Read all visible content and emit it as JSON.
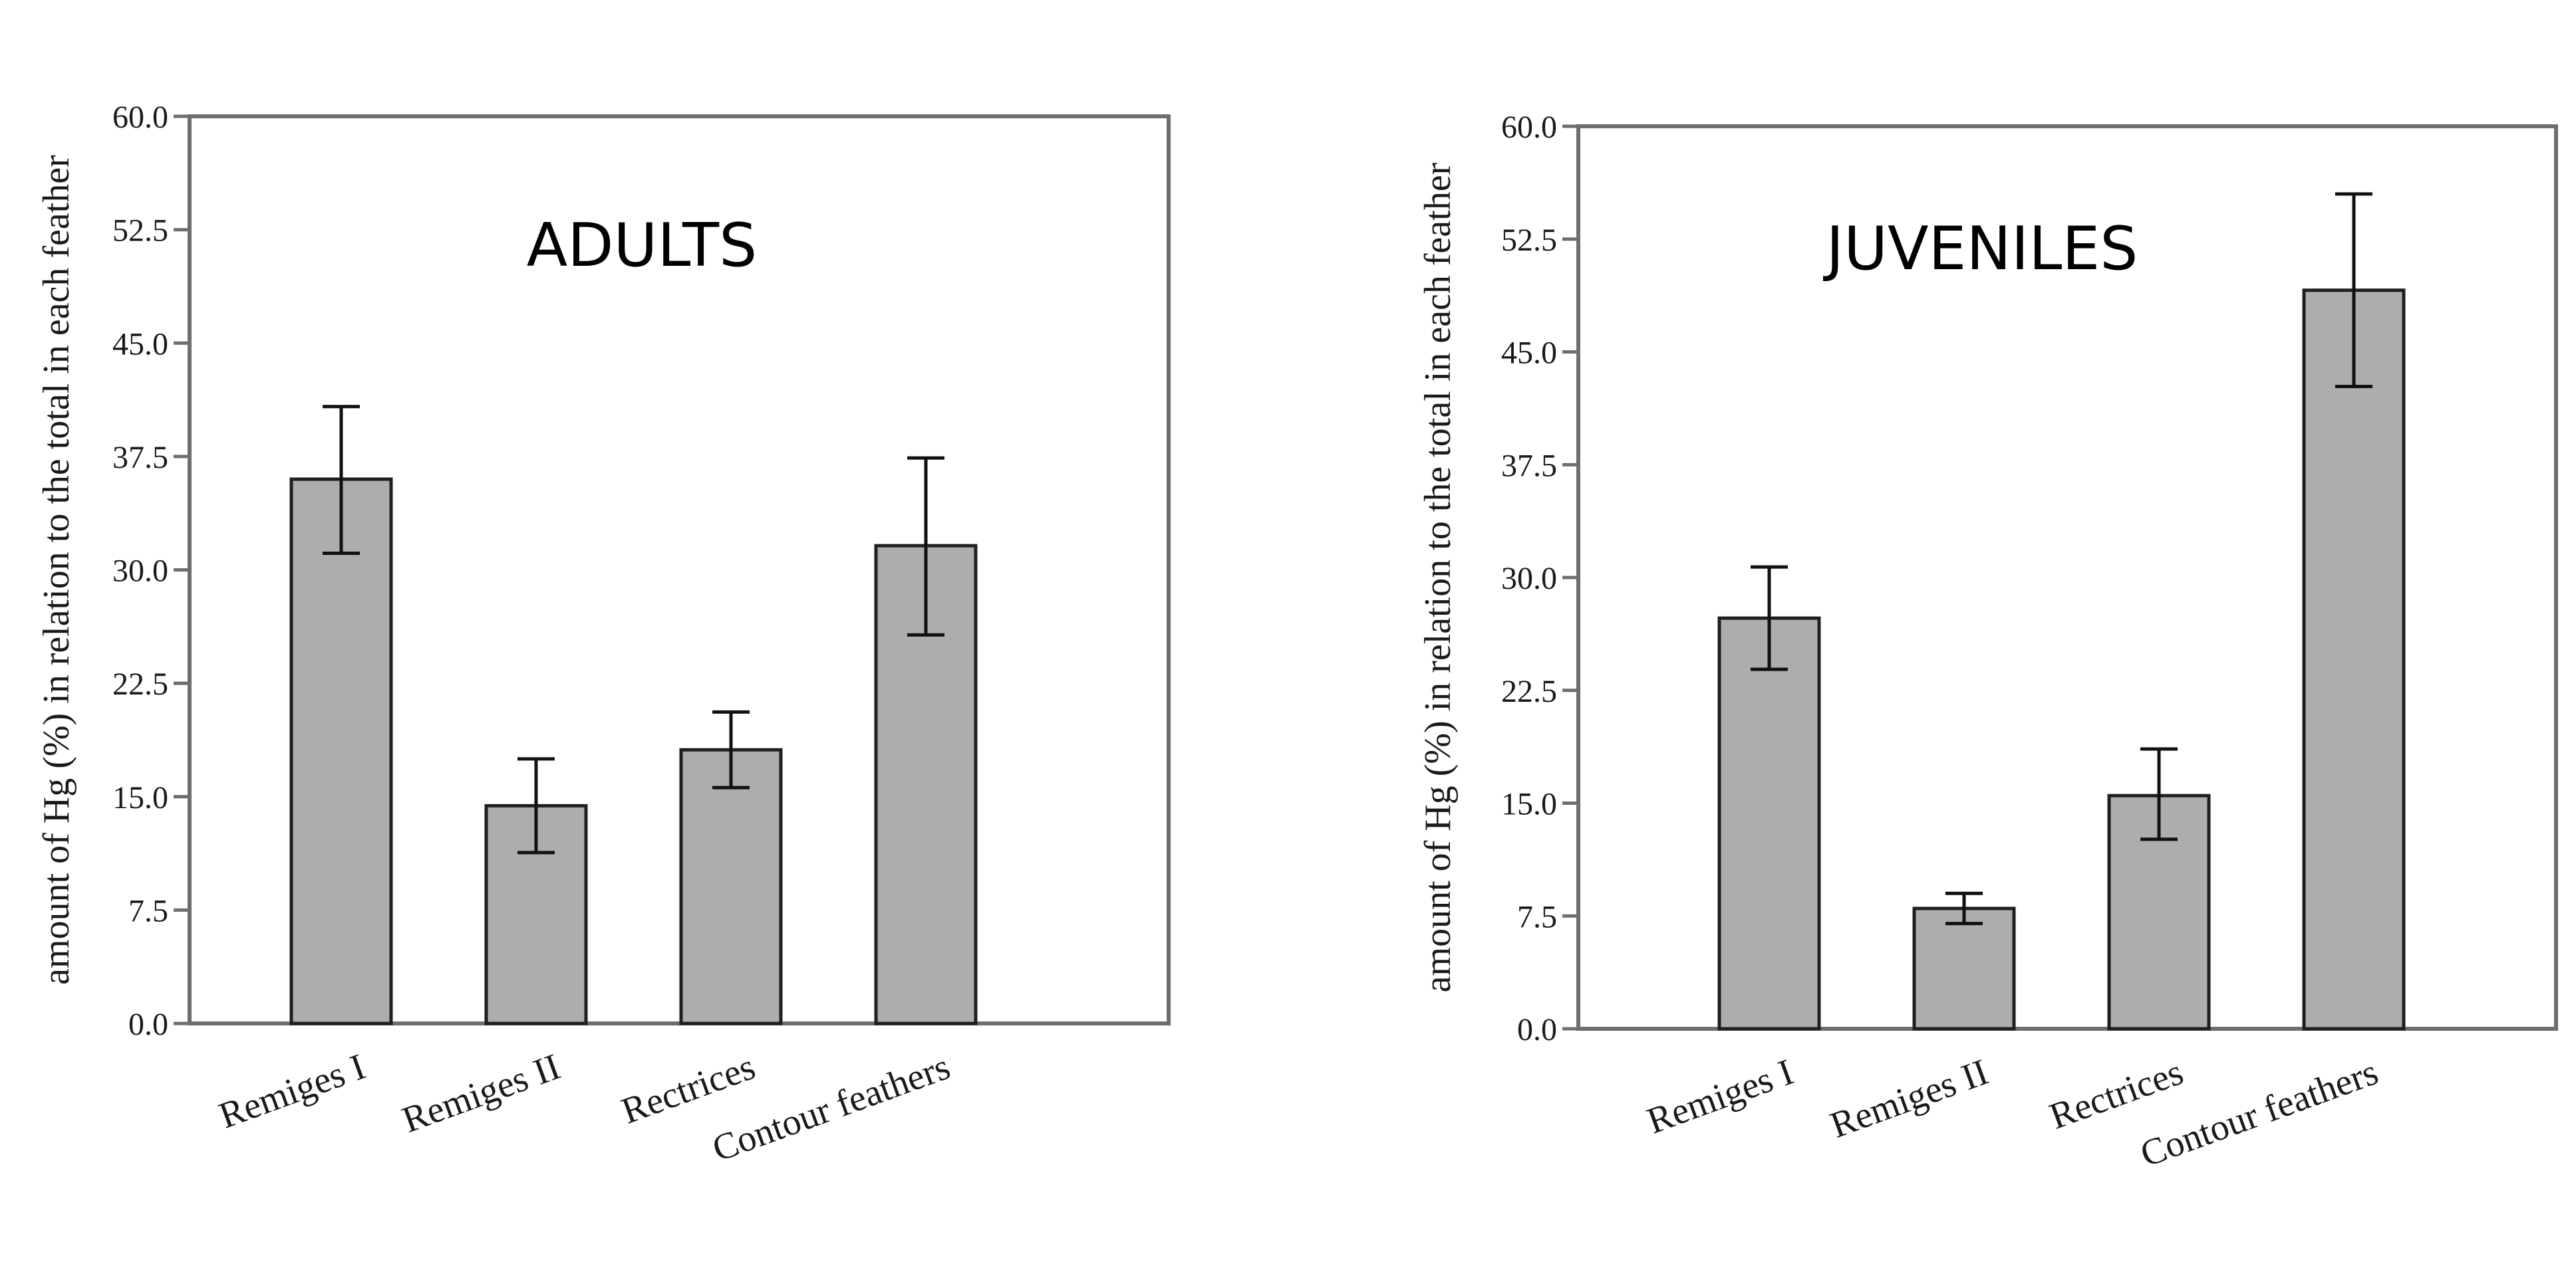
{
  "chart_data": [
    {
      "type": "bar",
      "title": "ADULTS",
      "ylabel": "amount of Hg (%) in relation to the total in each feather",
      "ylim": [
        0,
        60
      ],
      "yticks": [
        "0.0",
        "7.5",
        "15.0",
        "22.5",
        "30.0",
        "37.5",
        "45.0",
        "52.5",
        "60.0"
      ],
      "categories": [
        "Remiges I",
        "Remiges II",
        "Rectrices",
        "Contour feathers"
      ],
      "values": [
        36.0,
        14.4,
        18.1,
        31.6
      ],
      "error_low": [
        31.1,
        11.3,
        15.6,
        25.7
      ],
      "error_high": [
        40.8,
        17.5,
        20.6,
        37.4
      ],
      "grid": false,
      "colors": {
        "bar": "#adadad",
        "bar_edge": "#1f1f1f",
        "frame": "#6e6e6e"
      }
    },
    {
      "type": "bar",
      "title": "JUVENILES",
      "ylabel": "amount of Hg (%) in relation to the total in each feather",
      "ylim": [
        0,
        60
      ],
      "yticks": [
        "0.0",
        "7.5",
        "15.0",
        "22.5",
        "30.0",
        "37.5",
        "45.0",
        "52.5",
        "60.0"
      ],
      "categories": [
        "Remiges I",
        "Remiges II",
        "Rectrices",
        "Contour feathers"
      ],
      "values": [
        27.3,
        8.0,
        15.5,
        49.1
      ],
      "error_low": [
        23.9,
        7.0,
        12.6,
        42.7
      ],
      "error_high": [
        30.7,
        9.0,
        18.6,
        55.5
      ],
      "grid": false,
      "colors": {
        "bar": "#adadad",
        "bar_edge": "#1f1f1f",
        "frame": "#6e6e6e"
      }
    }
  ]
}
